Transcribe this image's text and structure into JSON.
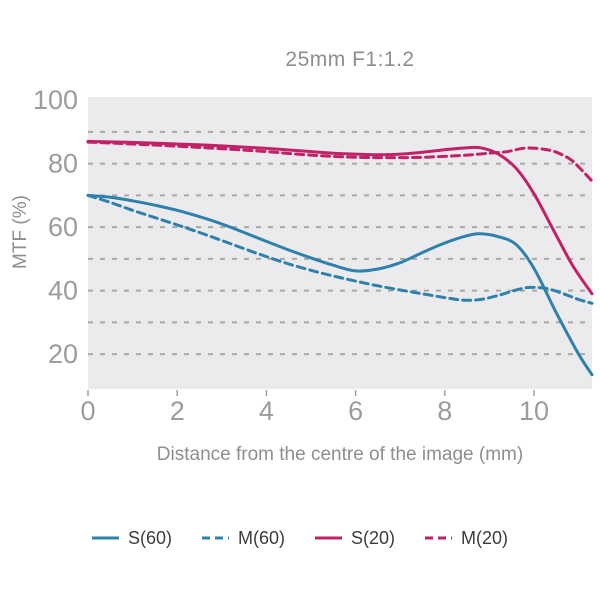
{
  "chart_data": {
    "type": "line",
    "title": "25mm F1:1.2",
    "xlabel": "Distance from the centre of the image (mm)",
    "ylabel": "MTF (%)",
    "xlim": [
      0,
      11.3
    ],
    "ylim": [
      9,
      101
    ],
    "x_ticks": [
      0,
      2,
      4,
      6,
      8,
      10
    ],
    "y_ticks": [
      20,
      40,
      60,
      80,
      100
    ],
    "y_gridlines": [
      20,
      30,
      40,
      50,
      60,
      70,
      80,
      90
    ],
    "grid_style": "dashed",
    "legend_position": "bottom",
    "colors": {
      "plot_bg": "#ebebed",
      "grid": "#a8a8a8",
      "tick": "#a0a0a0",
      "tick_text": "#9c9c9c",
      "title_text": "#8e8e8e",
      "axis_label_text": "#8e8e8e",
      "legend_text": "#3c3c3c",
      "blue": "#2e81aa",
      "magenta": "#c32167"
    },
    "series": [
      {
        "name": "S(60)",
        "color": "#2e81aa",
        "style": "solid",
        "points": [
          [
            0,
            70
          ],
          [
            0.5,
            69.4
          ],
          [
            1,
            68.3
          ],
          [
            1.5,
            66.9
          ],
          [
            2,
            65.3
          ],
          [
            2.5,
            63.3
          ],
          [
            3,
            61
          ],
          [
            3.5,
            58.3
          ],
          [
            4,
            55.5
          ],
          [
            4.5,
            52.8
          ],
          [
            5,
            50.3
          ],
          [
            5.5,
            48
          ],
          [
            6,
            46.2
          ],
          [
            6.5,
            46.8
          ],
          [
            7,
            48.8
          ],
          [
            7.5,
            52
          ],
          [
            8,
            55
          ],
          [
            8.5,
            57.3
          ],
          [
            8.8,
            57.9
          ],
          [
            9.2,
            57
          ],
          [
            9.6,
            54.5
          ],
          [
            10,
            47
          ],
          [
            10.5,
            33
          ],
          [
            11,
            20
          ],
          [
            11.3,
            13.5
          ]
        ]
      },
      {
        "name": "M(60)",
        "color": "#2e81aa",
        "style": "dashed",
        "points": [
          [
            0,
            70
          ],
          [
            0.5,
            67.8
          ],
          [
            1,
            65.3
          ],
          [
            1.5,
            63
          ],
          [
            2,
            60.7
          ],
          [
            2.5,
            58.3
          ],
          [
            3,
            55.8
          ],
          [
            3.5,
            53.2
          ],
          [
            4,
            50.7
          ],
          [
            4.5,
            48.4
          ],
          [
            5,
            46.4
          ],
          [
            5.5,
            44.6
          ],
          [
            6,
            43
          ],
          [
            6.5,
            41.5
          ],
          [
            7,
            40.2
          ],
          [
            7.5,
            39
          ],
          [
            8,
            37.8
          ],
          [
            8.4,
            37
          ],
          [
            8.8,
            37.2
          ],
          [
            9.2,
            38.5
          ],
          [
            9.6,
            40.2
          ],
          [
            9.9,
            41
          ],
          [
            10.3,
            40.6
          ],
          [
            10.7,
            38.8
          ],
          [
            11,
            37.2
          ],
          [
            11.3,
            36
          ]
        ]
      },
      {
        "name": "S(20)",
        "color": "#c32167",
        "style": "solid",
        "points": [
          [
            0,
            87
          ],
          [
            1,
            86.7
          ],
          [
            2,
            86.2
          ],
          [
            3,
            85.6
          ],
          [
            4,
            84.8
          ],
          [
            4.5,
            84.3
          ],
          [
            5,
            83.8
          ],
          [
            5.5,
            83.3
          ],
          [
            6,
            83
          ],
          [
            6.5,
            82.8
          ],
          [
            7,
            83
          ],
          [
            7.5,
            83.6
          ],
          [
            8,
            84.4
          ],
          [
            8.4,
            84.9
          ],
          [
            8.8,
            85
          ],
          [
            9.2,
            83
          ],
          [
            9.6,
            78.5
          ],
          [
            10,
            70.5
          ],
          [
            10.4,
            60
          ],
          [
            10.8,
            49.5
          ],
          [
            11,
            45
          ],
          [
            11.3,
            39
          ]
        ]
      },
      {
        "name": "M(20)",
        "color": "#c32167",
        "style": "dashed",
        "points": [
          [
            0,
            86.8
          ],
          [
            1,
            86.2
          ],
          [
            2,
            85.5
          ],
          [
            3,
            84.7
          ],
          [
            4,
            83.8
          ],
          [
            4.5,
            83.2
          ],
          [
            5,
            82.7
          ],
          [
            5.5,
            82.3
          ],
          [
            6,
            82
          ],
          [
            6.5,
            81.9
          ],
          [
            7,
            81.9
          ],
          [
            7.5,
            82
          ],
          [
            8,
            82.3
          ],
          [
            8.5,
            82.7
          ],
          [
            9,
            83.3
          ],
          [
            9.4,
            83.8
          ],
          [
            9.8,
            84.9
          ],
          [
            10.2,
            84.6
          ],
          [
            10.5,
            83.6
          ],
          [
            10.8,
            81.5
          ],
          [
            11,
            79
          ],
          [
            11.3,
            74.5
          ]
        ]
      }
    ]
  }
}
